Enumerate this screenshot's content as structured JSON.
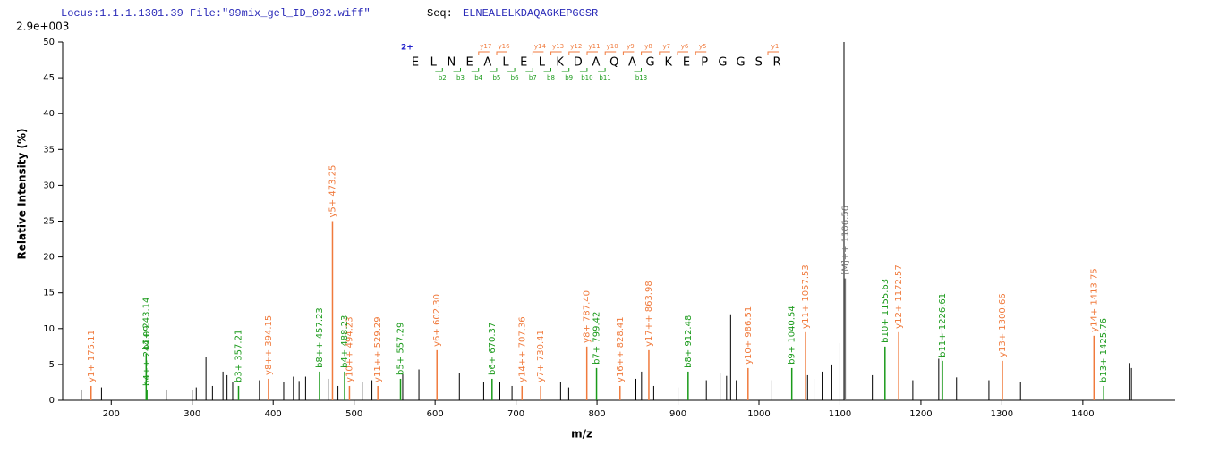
{
  "header": {
    "locus": "Locus:1.1.1.1301.39 File:\"99mix_gel_ID_002.wiff\"",
    "seq_label": "Seq:",
    "seq": "ELNEALELKDAQAGKEPGGSR"
  },
  "chart_data": {
    "type": "spectrum",
    "scale_label": "2.9e+003",
    "ylabel": "Relative  Intensity (%)",
    "xlabel": "m/z",
    "xlim": [
      140,
      1514
    ],
    "ylim": [
      0,
      50
    ],
    "xticks": [
      200,
      300,
      400,
      500,
      600,
      700,
      800,
      900,
      1000,
      1100,
      1200,
      1300,
      1400
    ],
    "yticks": [
      0,
      5,
      10,
      15,
      20,
      25,
      30,
      35,
      40,
      45,
      50
    ],
    "sequence": {
      "charge": "2+",
      "residues": [
        "E",
        "L",
        "N",
        "E",
        "A",
        "L",
        "E",
        "L",
        "K",
        "D",
        "A",
        "Q",
        "A",
        "G",
        "K",
        "E",
        "P",
        "G",
        "G",
        "S",
        "R"
      ],
      "y_ions": [
        "y17",
        "y16",
        "y14",
        "y13",
        "y12",
        "y11",
        "y10",
        "y9",
        "y8",
        "y7",
        "y6",
        "y5",
        "y1"
      ],
      "b_ions": [
        "b2",
        "b3",
        "b4",
        "b5",
        "b6",
        "b7",
        "b8",
        "b9",
        "b10",
        "b11",
        "b13"
      ],
      "y_color": "#f07a3c",
      "b_color": "#1a9a1a"
    },
    "series": [
      {
        "color": "#000000",
        "x": [
          163,
          188,
          268,
          300,
          305,
          317,
          325,
          338,
          343,
          350,
          383,
          413,
          425,
          432,
          440,
          468,
          480,
          510,
          522,
          560,
          580,
          630,
          660,
          680,
          695,
          755,
          765,
          848,
          855,
          870,
          900,
          935,
          952,
          960,
          965,
          972,
          1015,
          1060,
          1068,
          1078,
          1090,
          1100,
          1105,
          1140,
          1190,
          1222,
          1226,
          1244,
          1284,
          1323,
          1458,
          1460
        ],
        "values": [
          1.5,
          1.8,
          1.5,
          1.5,
          1.8,
          6,
          2,
          4,
          3.5,
          2.5,
          2.8,
          2.5,
          3.3,
          2.7,
          3.3,
          3,
          2,
          2.5,
          2.8,
          3.7,
          4.3,
          3.8,
          2.5,
          2.5,
          2,
          2.5,
          1.8,
          3,
          4,
          2,
          1.8,
          2.8,
          3.8,
          3.4,
          12,
          2.8,
          2.8,
          3.5,
          3,
          4,
          5,
          8,
          50,
          3.5,
          2.8,
          5.8,
          15,
          3.2,
          2.8,
          2.5,
          5.2,
          4.5
        ]
      },
      {
        "color": "#f07a3c",
        "x": [
          175.11,
          394.15,
          473.25,
          494.23,
          529.29,
          602.3,
          707.36,
          730.41,
          787.4,
          828.41,
          863.98,
          986.51,
          1057.53,
          1172.57,
          1300.66,
          1413.75
        ],
        "values": [
          2,
          3,
          25,
          2,
          2,
          7,
          2,
          2,
          7.5,
          2,
          7,
          4.5,
          9.5,
          9.5,
          5.5,
          9
        ],
        "labels": [
          "y1+ 175.11",
          "y8++ 394.15",
          "y5+ 473.25",
          "y10++ 494.23",
          "y11++ 529.29",
          "y6+ 602.30",
          "y14++ 707.36",
          "y7+ 730.41",
          "y8+ 787.40",
          "y16++ 828.41",
          "y17++ 863.98",
          "y10+ 986.51",
          "y11+ 1057.53",
          "y12+ 1172.57",
          "y13+ 1300.66",
          "y14+ 1413.75"
        ]
      },
      {
        "color": "#1a9a1a",
        "x": [
          243.14,
          244.09,
          357.21,
          457.23,
          488.23,
          557.29,
          670.37,
          799.42,
          912.48,
          1040.54,
          1155.63,
          1226.61,
          1425.76
        ],
        "values": [
          6.5,
          1.5,
          2,
          4,
          4,
          3,
          3,
          4.5,
          4,
          4.5,
          7.5,
          5.5,
          2
        ],
        "labels": [
          "b2+ 243.14",
          "b4++ 244.09",
          "b3+ 357.21",
          "b8++ 457.23",
          "b4+ 488.23",
          "b5+ 557.29",
          "b6+ 670.37",
          "b7+ 799.42",
          "b8+ 912.48",
          "b9+ 1040.54",
          "b10+ 1155.63",
          "b11+ 1226.61",
          "b13+ 1425.76"
        ]
      },
      {
        "color": "#777777",
        "x": [
          1106.56
        ],
        "values": [
          17
        ],
        "labels": [
          "[M]++ 1106.56"
        ]
      }
    ]
  }
}
